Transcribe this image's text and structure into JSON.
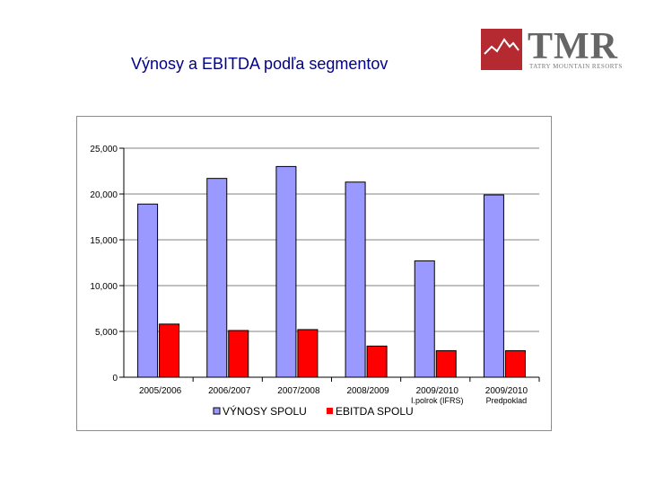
{
  "slide": {
    "title": "Výnosy a EBITDA podľa segmentov"
  },
  "logo": {
    "name": "TMR",
    "subtitle": "TATRY MOUNTAIN RESORTS"
  },
  "colors": {
    "title": "#00008b",
    "logo_red": "#b52a30",
    "series_vynosy": "#9999ff",
    "series_ebitda": "#ff0000"
  },
  "chart_data": {
    "type": "bar",
    "categories": [
      [
        "2005/2006"
      ],
      [
        "2006/2007"
      ],
      [
        "2007/2008"
      ],
      [
        "2008/2009"
      ],
      [
        "2009/2010",
        "I.polrok (IFRS)"
      ],
      [
        "2009/2010",
        "Predpoklad"
      ]
    ],
    "series": [
      {
        "name": "VÝNOSY SPOLU",
        "values": [
          18900,
          21700,
          23000,
          21300,
          12700,
          19900
        ]
      },
      {
        "name": "EBITDA SPOLU",
        "values": [
          5800,
          5100,
          5200,
          3400,
          2900,
          2900
        ]
      }
    ],
    "yticks": [
      "0",
      "5,000",
      "10,000",
      "15,000",
      "20,000",
      "25,000"
    ],
    "ylim": [
      0,
      25000
    ],
    "grid": true,
    "legend_position": "bottom"
  }
}
